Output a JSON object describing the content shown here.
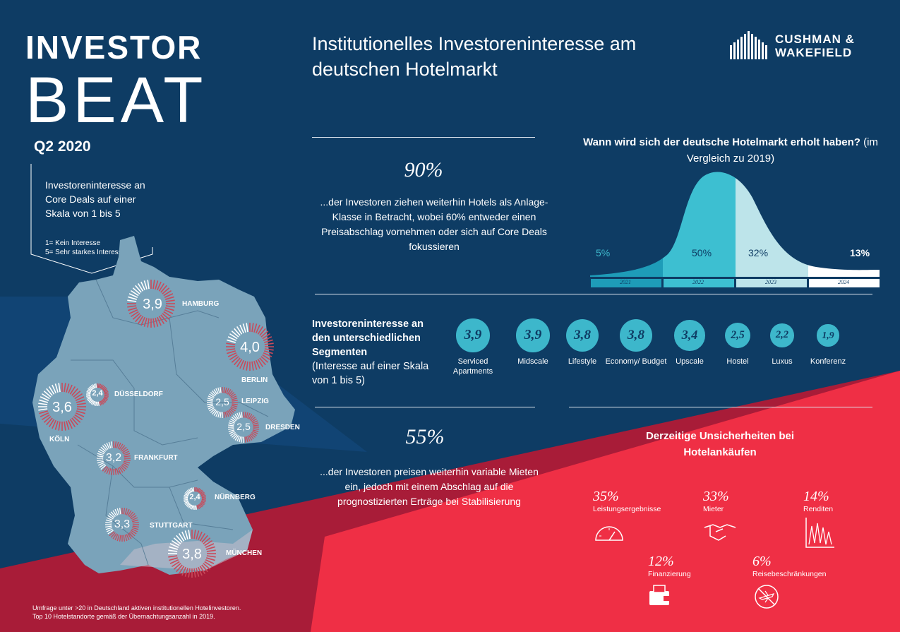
{
  "header": {
    "title_line1": "INVESTOR",
    "title_line2": "BEAT",
    "quarter": "Q2 2020",
    "main_title": "Institutionelles Investoreninteresse am deutschen Hotelmarkt",
    "logo_line1": "CUSHMAN &",
    "logo_line2": "WAKEFIELD"
  },
  "callout": {
    "text": "Investoreninteresse an Core Deals auf einer Skala von 1 bis 5",
    "legend1": "1= Kein Interesse",
    "legend2": "5= Sehr starkes Interesse"
  },
  "cities": [
    {
      "name": "HAMBURG",
      "value": "3,9"
    },
    {
      "name": "BERLIN",
      "value": "4,0"
    },
    {
      "name": "DÜSSELDORF",
      "value": "2,4"
    },
    {
      "name": "KÖLN",
      "value": "3,6"
    },
    {
      "name": "LEIPZIG",
      "value": "2,5"
    },
    {
      "name": "DRESDEN",
      "value": "2,5"
    },
    {
      "name": "FRANKFURT",
      "value": "3,2"
    },
    {
      "name": "NÜRNBERG",
      "value": "2,4"
    },
    {
      "name": "STUTTGART",
      "value": "3,3"
    },
    {
      "name": "MÜNCHEN",
      "value": "3,8"
    }
  ],
  "stat1": {
    "pct": "90%",
    "text": "...der Investoren ziehen weiterhin Hotels als Anlage-Klasse in Betracht, wobei 60% entweder einen Preisabschlag vornehmen oder sich auf Core Deals fokussieren"
  },
  "recovery": {
    "title_bold": "Wann wird sich der deutsche Hotelmarkt erholt haben?",
    "title_rest": " (im Vergleich zu 2019)",
    "bands": [
      {
        "year": "2021",
        "pct": "5%",
        "color": "#1e9cb8"
      },
      {
        "year": "2022",
        "pct": "50%",
        "color": "#3dbfd1"
      },
      {
        "year": "2023",
        "pct": "32%",
        "color": "#bde4ea"
      },
      {
        "year": "2024",
        "pct": "13%",
        "color": "#ffffff"
      }
    ]
  },
  "segments": {
    "title": "Investoreninteresse an den unterschiedlichen Segmenten",
    "subtitle": "(Interesse auf einer Skala von 1 bis 5)",
    "items": [
      {
        "value": "3,9",
        "label": "Serviced Apartments"
      },
      {
        "value": "3,9",
        "label": "Midscale"
      },
      {
        "value": "3,8",
        "label": "Lifestyle"
      },
      {
        "value": "3,8",
        "label": "Economy/ Budget"
      },
      {
        "value": "3,4",
        "label": "Upscale"
      },
      {
        "value": "2,5",
        "label": "Hostel"
      },
      {
        "value": "2,2",
        "label": "Luxus"
      },
      {
        "value": "1,9",
        "label": "Konferenz"
      }
    ]
  },
  "stat2": {
    "pct": "55%",
    "text": "...der Investoren preisen weiterhin variable Mieten ein, jedoch mit einem Abschlag auf die prognostizierten Erträge bei Stabilisierung"
  },
  "uncertainties": {
    "title": "Derzeitige Unsicherheiten bei Hotelankäufen",
    "items": [
      {
        "pct": "35%",
        "label": "Leistungsergebnisse",
        "icon": "gauge-icon"
      },
      {
        "pct": "33%",
        "label": "Mieter",
        "icon": "handshake-icon"
      },
      {
        "pct": "14%",
        "label": "Renditen",
        "icon": "chart-icon"
      },
      {
        "pct": "12%",
        "label": "Finanzierung",
        "icon": "wallet-icon"
      },
      {
        "pct": "6%",
        "label": "Reisebeschränkungen",
        "icon": "no-plane-icon"
      }
    ]
  },
  "footnote": {
    "line1": "Umfrage unter >20 in Deutschland aktiven institutionellen Hotelinvestoren.",
    "line2": "Top 10 Hotelstandorte gemäß der Übernachtungsanzahl in 2019."
  },
  "colors": {
    "navy": "#0e3c64",
    "navy_mid": "#13477a",
    "red": "#ef2f45",
    "dark_red": "#a81c38",
    "map": "#7aa3ba",
    "teal": "#3db7cb"
  }
}
